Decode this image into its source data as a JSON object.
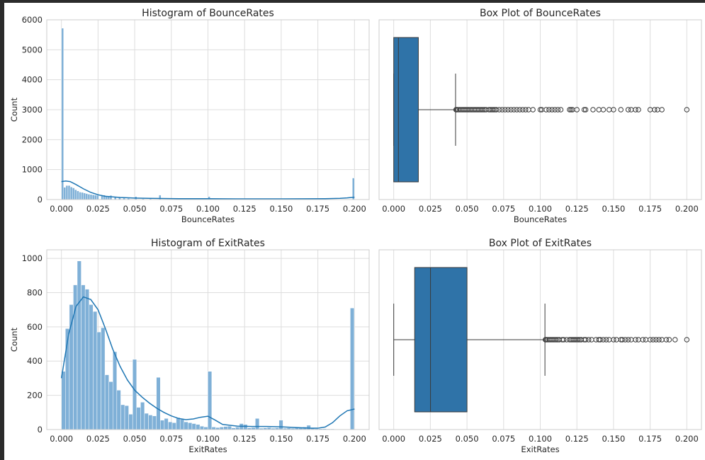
{
  "chart_data": [
    {
      "type": "histogram",
      "title": "Histogram of BounceRates",
      "xlabel": "BounceRates",
      "ylabel": "Count",
      "xlim": [
        -0.01,
        0.21
      ],
      "ylim": [
        0,
        6000
      ],
      "xticks": [
        0.0,
        0.025,
        0.05,
        0.075,
        0.1,
        0.125,
        0.15,
        0.175,
        0.2
      ],
      "xtick_labels": [
        "0.000",
        "0.025",
        "0.050",
        "0.075",
        "0.100",
        "0.125",
        "0.150",
        "0.175",
        "0.200"
      ],
      "yticks": [
        0,
        1000,
        2000,
        3000,
        4000,
        5000,
        6000
      ],
      "ytick_labels": [
        "0",
        "1000",
        "2000",
        "3000",
        "4000",
        "5000",
        "6000"
      ],
      "bar_color": "#7fb0d7",
      "kde_color": "#1f77b4",
      "bars": [
        {
          "x0": 0.0,
          "x1": 0.0015,
          "y": 5720
        },
        {
          "x0": 0.0015,
          "x1": 0.003,
          "y": 410
        },
        {
          "x0": 0.003,
          "x1": 0.0045,
          "y": 470
        },
        {
          "x0": 0.0045,
          "x1": 0.006,
          "y": 470
        },
        {
          "x0": 0.006,
          "x1": 0.0075,
          "y": 420
        },
        {
          "x0": 0.0075,
          "x1": 0.009,
          "y": 390
        },
        {
          "x0": 0.009,
          "x1": 0.0105,
          "y": 330
        },
        {
          "x0": 0.0105,
          "x1": 0.012,
          "y": 290
        },
        {
          "x0": 0.012,
          "x1": 0.0135,
          "y": 250
        },
        {
          "x0": 0.0135,
          "x1": 0.015,
          "y": 240
        },
        {
          "x0": 0.015,
          "x1": 0.0165,
          "y": 220
        },
        {
          "x0": 0.0165,
          "x1": 0.018,
          "y": 200
        },
        {
          "x0": 0.018,
          "x1": 0.0195,
          "y": 180
        },
        {
          "x0": 0.0195,
          "x1": 0.021,
          "y": 170
        },
        {
          "x0": 0.021,
          "x1": 0.0225,
          "y": 160
        },
        {
          "x0": 0.0225,
          "x1": 0.024,
          "y": 150
        },
        {
          "x0": 0.024,
          "x1": 0.0255,
          "y": 140
        },
        {
          "x0": 0.027,
          "x1": 0.0285,
          "y": 130
        },
        {
          "x0": 0.0285,
          "x1": 0.03,
          "y": 150
        },
        {
          "x0": 0.03,
          "x1": 0.0315,
          "y": 110
        },
        {
          "x0": 0.0315,
          "x1": 0.033,
          "y": 100
        },
        {
          "x0": 0.033,
          "x1": 0.0345,
          "y": 140
        },
        {
          "x0": 0.036,
          "x1": 0.0375,
          "y": 80
        },
        {
          "x0": 0.039,
          "x1": 0.0405,
          "y": 90
        },
        {
          "x0": 0.042,
          "x1": 0.0435,
          "y": 50
        },
        {
          "x0": 0.045,
          "x1": 0.0465,
          "y": 40
        },
        {
          "x0": 0.05,
          "x1": 0.0515,
          "y": 100
        },
        {
          "x0": 0.055,
          "x1": 0.0565,
          "y": 30
        },
        {
          "x0": 0.06,
          "x1": 0.0615,
          "y": 30
        },
        {
          "x0": 0.0665,
          "x1": 0.068,
          "y": 150
        },
        {
          "x0": 0.1,
          "x1": 0.1015,
          "y": 100
        },
        {
          "x0": 0.1985,
          "x1": 0.2,
          "y": 720
        }
      ],
      "kde": {
        "x": [
          0.0,
          0.003,
          0.006,
          0.01,
          0.015,
          0.02,
          0.025,
          0.03,
          0.04,
          0.05,
          0.06,
          0.08,
          0.1,
          0.12,
          0.15,
          0.18,
          0.19,
          0.195,
          0.2
        ],
        "y": [
          600,
          620,
          600,
          500,
          360,
          240,
          160,
          110,
          70,
          50,
          40,
          30,
          30,
          25,
          25,
          30,
          40,
          55,
          80
        ]
      }
    },
    {
      "type": "box",
      "title": "Box Plot of BounceRates",
      "xlabel": "BounceRates",
      "xlim": [
        -0.01,
        0.21
      ],
      "xticks": [
        0.0,
        0.025,
        0.05,
        0.075,
        0.1,
        0.125,
        0.15,
        0.175,
        0.2
      ],
      "xtick_labels": [
        "0.000",
        "0.025",
        "0.050",
        "0.075",
        "0.100",
        "0.125",
        "0.150",
        "0.175",
        "0.200"
      ],
      "box_color": "#2f73a8",
      "whisker_low": 0.0,
      "q1": 0.0,
      "median": 0.0032,
      "q3": 0.0168,
      "whisker_high": 0.0422,
      "outliers": [
        0.0425,
        0.043,
        0.044,
        0.045,
        0.046,
        0.047,
        0.048,
        0.049,
        0.05,
        0.051,
        0.052,
        0.053,
        0.054,
        0.055,
        0.056,
        0.057,
        0.058,
        0.059,
        0.06,
        0.061,
        0.062,
        0.063,
        0.065,
        0.066,
        0.067,
        0.068,
        0.069,
        0.07,
        0.072,
        0.074,
        0.076,
        0.078,
        0.08,
        0.082,
        0.084,
        0.086,
        0.088,
        0.09,
        0.092,
        0.095,
        0.1,
        0.101,
        0.104,
        0.106,
        0.108,
        0.11,
        0.112,
        0.114,
        0.12,
        0.121,
        0.122,
        0.125,
        0.13,
        0.131,
        0.136,
        0.14,
        0.143,
        0.147,
        0.15,
        0.155,
        0.16,
        0.162,
        0.165,
        0.167,
        0.175,
        0.178,
        0.18,
        0.183,
        0.2
      ]
    },
    {
      "type": "histogram",
      "title": "Histogram of ExitRates",
      "xlabel": "ExitRates",
      "ylabel": "Count",
      "xlim": [
        -0.01,
        0.21
      ],
      "ylim": [
        0,
        1050
      ],
      "xticks": [
        0.0,
        0.025,
        0.05,
        0.075,
        0.1,
        0.125,
        0.15,
        0.175,
        0.2
      ],
      "xtick_labels": [
        "0.000",
        "0.025",
        "0.050",
        "0.075",
        "0.100",
        "0.125",
        "0.150",
        "0.175",
        "0.200"
      ],
      "yticks": [
        0,
        200,
        400,
        600,
        800,
        1000
      ],
      "ytick_labels": [
        "0",
        "200",
        "400",
        "600",
        "800",
        "1000"
      ],
      "bar_color": "#7fb0d7",
      "kde_color": "#1f77b4",
      "bars": [
        {
          "x0": 0.0,
          "x1": 0.0027,
          "y": 340
        },
        {
          "x0": 0.0027,
          "x1": 0.0054,
          "y": 590
        },
        {
          "x0": 0.0054,
          "x1": 0.0081,
          "y": 730
        },
        {
          "x0": 0.0081,
          "x1": 0.0108,
          "y": 845
        },
        {
          "x0": 0.0108,
          "x1": 0.0135,
          "y": 985
        },
        {
          "x0": 0.0135,
          "x1": 0.0162,
          "y": 845
        },
        {
          "x0": 0.0162,
          "x1": 0.0189,
          "y": 820
        },
        {
          "x0": 0.0189,
          "x1": 0.0216,
          "y": 730
        },
        {
          "x0": 0.0216,
          "x1": 0.0243,
          "y": 690
        },
        {
          "x0": 0.0243,
          "x1": 0.027,
          "y": 570
        },
        {
          "x0": 0.027,
          "x1": 0.0297,
          "y": 595
        },
        {
          "x0": 0.0297,
          "x1": 0.0324,
          "y": 320
        },
        {
          "x0": 0.0324,
          "x1": 0.0351,
          "y": 280
        },
        {
          "x0": 0.0351,
          "x1": 0.0378,
          "y": 455
        },
        {
          "x0": 0.0378,
          "x1": 0.0405,
          "y": 230
        },
        {
          "x0": 0.0405,
          "x1": 0.0432,
          "y": 145
        },
        {
          "x0": 0.0432,
          "x1": 0.0459,
          "y": 140
        },
        {
          "x0": 0.0459,
          "x1": 0.0486,
          "y": 90
        },
        {
          "x0": 0.0486,
          "x1": 0.0513,
          "y": 410
        },
        {
          "x0": 0.0513,
          "x1": 0.054,
          "y": 130
        },
        {
          "x0": 0.054,
          "x1": 0.0567,
          "y": 160
        },
        {
          "x0": 0.0567,
          "x1": 0.0594,
          "y": 95
        },
        {
          "x0": 0.0594,
          "x1": 0.0621,
          "y": 85
        },
        {
          "x0": 0.0621,
          "x1": 0.0648,
          "y": 80
        },
        {
          "x0": 0.0648,
          "x1": 0.0675,
          "y": 305
        },
        {
          "x0": 0.0675,
          "x1": 0.0702,
          "y": 55
        },
        {
          "x0": 0.0702,
          "x1": 0.0729,
          "y": 65
        },
        {
          "x0": 0.0729,
          "x1": 0.0756,
          "y": 45
        },
        {
          "x0": 0.0756,
          "x1": 0.0783,
          "y": 40
        },
        {
          "x0": 0.0783,
          "x1": 0.081,
          "y": 70
        },
        {
          "x0": 0.081,
          "x1": 0.0837,
          "y": 60
        },
        {
          "x0": 0.0837,
          "x1": 0.0864,
          "y": 45
        },
        {
          "x0": 0.0864,
          "x1": 0.0891,
          "y": 40
        },
        {
          "x0": 0.0891,
          "x1": 0.0918,
          "y": 35
        },
        {
          "x0": 0.0918,
          "x1": 0.0945,
          "y": 30
        },
        {
          "x0": 0.0945,
          "x1": 0.0972,
          "y": 20
        },
        {
          "x0": 0.0972,
          "x1": 0.0999,
          "y": 15
        },
        {
          "x0": 0.0999,
          "x1": 0.1026,
          "y": 340
        },
        {
          "x0": 0.1026,
          "x1": 0.1053,
          "y": 15
        },
        {
          "x0": 0.1053,
          "x1": 0.108,
          "y": 12
        },
        {
          "x0": 0.108,
          "x1": 0.1107,
          "y": 15
        },
        {
          "x0": 0.1107,
          "x1": 0.1134,
          "y": 18
        },
        {
          "x0": 0.1134,
          "x1": 0.1161,
          "y": 20
        },
        {
          "x0": 0.1161,
          "x1": 0.1188,
          "y": 10
        },
        {
          "x0": 0.1188,
          "x1": 0.1215,
          "y": 15
        },
        {
          "x0": 0.1215,
          "x1": 0.1242,
          "y": 35
        },
        {
          "x0": 0.1242,
          "x1": 0.1269,
          "y": 30
        },
        {
          "x0": 0.1269,
          "x1": 0.1296,
          "y": 10
        },
        {
          "x0": 0.1296,
          "x1": 0.1323,
          "y": 12
        },
        {
          "x0": 0.1323,
          "x1": 0.135,
          "y": 65
        },
        {
          "x0": 0.135,
          "x1": 0.1377,
          "y": 8
        },
        {
          "x0": 0.1377,
          "x1": 0.1404,
          "y": 10
        },
        {
          "x0": 0.1404,
          "x1": 0.1431,
          "y": 12
        },
        {
          "x0": 0.1431,
          "x1": 0.1458,
          "y": 8
        },
        {
          "x0": 0.1458,
          "x1": 0.1485,
          "y": 10
        },
        {
          "x0": 0.1485,
          "x1": 0.1512,
          "y": 55
        },
        {
          "x0": 0.1512,
          "x1": 0.1539,
          "y": 8
        },
        {
          "x0": 0.1539,
          "x1": 0.1566,
          "y": 10
        },
        {
          "x0": 0.1566,
          "x1": 0.1593,
          "y": 8
        },
        {
          "x0": 0.1593,
          "x1": 0.162,
          "y": 12
        },
        {
          "x0": 0.162,
          "x1": 0.1647,
          "y": 10
        },
        {
          "x0": 0.1647,
          "x1": 0.1674,
          "y": 15
        },
        {
          "x0": 0.1674,
          "x1": 0.1701,
          "y": 25
        },
        {
          "x0": 0.1701,
          "x1": 0.1728,
          "y": 8
        },
        {
          "x0": 0.1728,
          "x1": 0.1755,
          "y": 6
        },
        {
          "x0": 0.1755,
          "x1": 0.1782,
          "y": 5
        },
        {
          "x0": 0.1782,
          "x1": 0.1809,
          "y": 5
        },
        {
          "x0": 0.1809,
          "x1": 0.1836,
          "y": 4
        },
        {
          "x0": 0.1836,
          "x1": 0.1863,
          "y": 4
        },
        {
          "x0": 0.1863,
          "x1": 0.189,
          "y": 3
        },
        {
          "x0": 0.189,
          "x1": 0.1917,
          "y": 3
        },
        {
          "x0": 0.1917,
          "x1": 0.1944,
          "y": 3
        },
        {
          "x0": 0.1944,
          "x1": 0.1971,
          "y": 2
        },
        {
          "x0": 0.1971,
          "x1": 0.1998,
          "y": 710
        }
      ],
      "kde": {
        "x": [
          0.0,
          0.005,
          0.01,
          0.015,
          0.02,
          0.025,
          0.03,
          0.035,
          0.04,
          0.045,
          0.05,
          0.055,
          0.06,
          0.065,
          0.07,
          0.075,
          0.08,
          0.085,
          0.09,
          0.095,
          0.1,
          0.105,
          0.11,
          0.12,
          0.13,
          0.14,
          0.15,
          0.16,
          0.17,
          0.175,
          0.18,
          0.185,
          0.19,
          0.195,
          0.2
        ],
        "y": [
          300,
          560,
          720,
          775,
          760,
          700,
          590,
          470,
          370,
          290,
          230,
          190,
          155,
          125,
          100,
          80,
          65,
          58,
          62,
          72,
          78,
          55,
          30,
          20,
          18,
          18,
          16,
          12,
          8,
          8,
          15,
          40,
          80,
          110,
          120
        ]
      }
    },
    {
      "type": "box",
      "title": "Box Plot of ExitRates",
      "xlabel": "ExitRates",
      "xlim": [
        -0.01,
        0.21
      ],
      "xticks": [
        0.0,
        0.025,
        0.05,
        0.075,
        0.1,
        0.125,
        0.15,
        0.175,
        0.2
      ],
      "xtick_labels": [
        "0.000",
        "0.025",
        "0.050",
        "0.075",
        "0.100",
        "0.125",
        "0.150",
        "0.175",
        "0.200"
      ],
      "box_color": "#2f73a8",
      "whisker_low": 0.0,
      "q1": 0.0143,
      "median": 0.0251,
      "q3": 0.05,
      "whisker_high": 0.1032,
      "outliers": [
        0.1035,
        0.104,
        0.105,
        0.106,
        0.107,
        0.108,
        0.109,
        0.11,
        0.111,
        0.112,
        0.113,
        0.115,
        0.116,
        0.118,
        0.12,
        0.121,
        0.122,
        0.123,
        0.124,
        0.125,
        0.126,
        0.127,
        0.128,
        0.13,
        0.131,
        0.133,
        0.135,
        0.138,
        0.14,
        0.141,
        0.143,
        0.145,
        0.147,
        0.15,
        0.152,
        0.155,
        0.156,
        0.158,
        0.16,
        0.162,
        0.165,
        0.167,
        0.17,
        0.172,
        0.175,
        0.177,
        0.179,
        0.181,
        0.183,
        0.186,
        0.188,
        0.192,
        0.2
      ]
    }
  ]
}
